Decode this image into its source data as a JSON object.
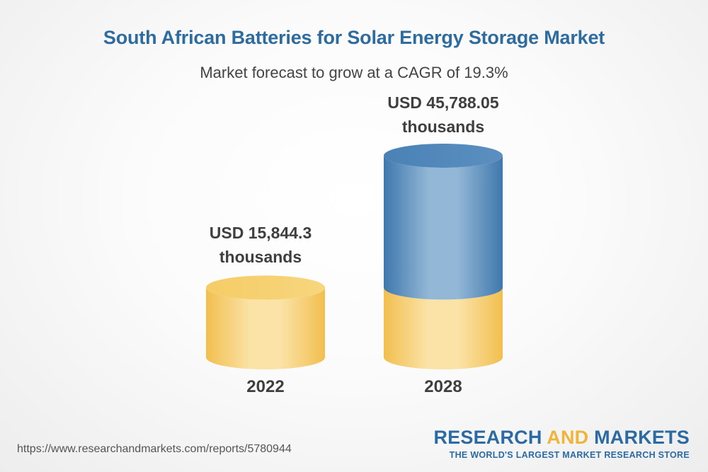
{
  "chart_data": {
    "type": "bar",
    "title": "South African Batteries for Solar Energy Storage Market",
    "subtitle": "Market forecast to grow at a CAGR of 19.3%",
    "unit": "USD thousands",
    "categories": [
      "2022",
      "2028"
    ],
    "values": [
      15844.3,
      45788.05
    ],
    "value_labels": [
      {
        "line1": "USD 15,844.3",
        "line2": "thousands"
      },
      {
        "line1": "USD 45,788.05",
        "line2": "thousands"
      }
    ],
    "cagr_percent": 19.3,
    "xlabel": "",
    "ylabel": "",
    "ylim": [
      0,
      45788.05
    ],
    "colors": {
      "base": "#f2bf4f",
      "base_light": "#fbe3a8",
      "growth": "#3f78ad",
      "growth_light": "#93b7d6"
    }
  },
  "footer": {
    "source_url": "https://www.researchandmarkets.com/reports/5780944",
    "brand_part1": "RESEARCH",
    "brand_part2": "AND",
    "brand_part3": "MARKETS",
    "brand_tagline": "THE WORLD'S LARGEST MARKET RESEARCH STORE"
  }
}
